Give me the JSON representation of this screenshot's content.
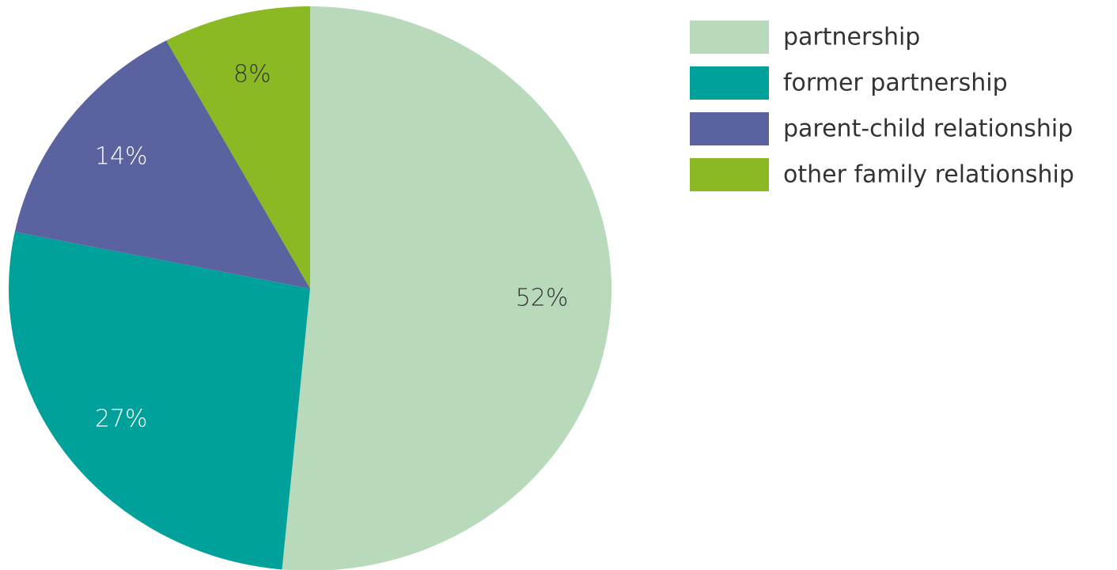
{
  "chart_data": {
    "type": "pie",
    "categories": [
      "partnership",
      "former partnership",
      "parent-child relationship",
      "other family relationship"
    ],
    "values": [
      52,
      27,
      14,
      8
    ],
    "value_labels": [
      "52%",
      "27%",
      "14%",
      "8%"
    ],
    "colors": [
      "#b8dabb",
      "#00a19a",
      "#5b62a0",
      "#8ab923"
    ],
    "label_colors": [
      "#333333",
      "#ffffff",
      "#ffffff",
      "#333333"
    ],
    "legend": "top-right"
  }
}
